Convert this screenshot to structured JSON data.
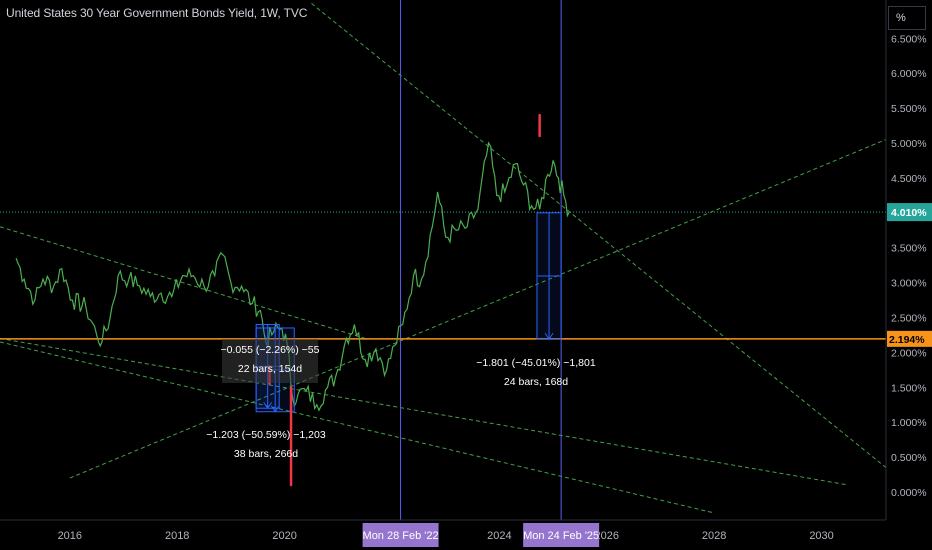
{
  "header": {
    "title": "United States 30 Year Government Bonds Yield, 1W, TVC",
    "unit": "%"
  },
  "colors": {
    "price_line": "#4caf50",
    "trend_lines": "#43a047",
    "horizontal_level": "#f7931a",
    "current_price": "#26a69a",
    "vertical_lines": "#5b5ff0",
    "date_label_bg": "#9575cd",
    "measure_box": "#2962ff",
    "red_marks": "#f23645"
  },
  "chart_data": {
    "type": "line",
    "title": "United States 30 Year Government Bonds Yield, 1W, TVC",
    "xlabel": "",
    "ylabel": "",
    "x_ticks": [
      "2016",
      "2018",
      "2020",
      "2024",
      "2026",
      "2028",
      "2030"
    ],
    "y_ticks": [
      "6.500%",
      "6.000%",
      "5.500%",
      "5.000%",
      "4.500%",
      "4.000%",
      "3.500%",
      "3.000%",
      "2.500%",
      "2.000%",
      "1.500%",
      "1.000%",
      "0.500%",
      "0.000%"
    ],
    "ylim": [
      -0.05,
      6.55
    ],
    "xlim": [
      2014.7,
      2031.2
    ],
    "grid": false,
    "series": [
      {
        "values": [
          [
            2015.0,
            3.35
          ],
          [
            2015.15,
            3.05
          ],
          [
            2015.35,
            2.75
          ],
          [
            2015.5,
            3.05
          ],
          [
            2015.7,
            2.95
          ],
          [
            2015.85,
            3.2
          ],
          [
            2016.05,
            2.75
          ],
          [
            2016.3,
            2.65
          ],
          [
            2016.5,
            2.25
          ],
          [
            2016.6,
            2.15
          ],
          [
            2016.75,
            2.5
          ],
          [
            2016.9,
            3.1
          ],
          [
            2017.1,
            3.05
          ],
          [
            2017.3,
            2.95
          ],
          [
            2017.5,
            2.8
          ],
          [
            2017.7,
            2.85
          ],
          [
            2017.9,
            2.8
          ],
          [
            2018.1,
            3.1
          ],
          [
            2018.3,
            3.1
          ],
          [
            2018.5,
            2.95
          ],
          [
            2018.7,
            3.1
          ],
          [
            2018.85,
            3.4
          ],
          [
            2019.0,
            3.0
          ],
          [
            2019.2,
            2.95
          ],
          [
            2019.4,
            2.7
          ],
          [
            2019.55,
            2.6
          ],
          [
            2019.65,
            2.15
          ],
          [
            2019.8,
            2.3
          ],
          [
            2019.95,
            2.35
          ],
          [
            2020.05,
            2.1
          ],
          [
            2020.15,
            1.35
          ],
          [
            2020.25,
            1.4
          ],
          [
            2020.4,
            1.45
          ],
          [
            2020.6,
            1.25
          ],
          [
            2020.8,
            1.5
          ],
          [
            2020.95,
            1.65
          ],
          [
            2021.15,
            2.2
          ],
          [
            2021.3,
            2.4
          ],
          [
            2021.5,
            1.9
          ],
          [
            2021.7,
            2.05
          ],
          [
            2021.9,
            1.75
          ],
          [
            2022.05,
            2.1
          ],
          [
            2022.2,
            2.4
          ],
          [
            2022.4,
            3.1
          ],
          [
            2022.55,
            3.05
          ],
          [
            2022.75,
            3.8
          ],
          [
            2022.85,
            4.3
          ],
          [
            2023.0,
            3.65
          ],
          [
            2023.2,
            3.75
          ],
          [
            2023.4,
            3.8
          ],
          [
            2023.6,
            4.05
          ],
          [
            2023.8,
            5.0
          ],
          [
            2023.95,
            4.25
          ],
          [
            2024.1,
            4.3
          ],
          [
            2024.3,
            4.7
          ],
          [
            2024.45,
            4.4
          ],
          [
            2024.6,
            4.1
          ],
          [
            2024.75,
            4.05
          ],
          [
            2024.9,
            4.55
          ],
          [
            2025.0,
            4.75
          ],
          [
            2025.1,
            4.5
          ],
          [
            2025.2,
            4.25
          ],
          [
            2025.3,
            4.01
          ]
        ]
      }
    ],
    "current_value": "4.010%",
    "horizontal_level": {
      "value": 2.194,
      "label": "2.194%"
    },
    "trend_lines": [
      {
        "from": [
          2014.7,
          3.8
        ],
        "to": [
          2021.5,
          2.2
        ]
      },
      {
        "from": [
          2014.7,
          2.2
        ],
        "to": [
          2030.5,
          0.1
        ]
      },
      {
        "from": [
          2016.0,
          0.2
        ],
        "to": [
          2031.2,
          5.05
        ]
      },
      {
        "from": [
          2014.7,
          2.15
        ],
        "to": [
          2028.0,
          -0.3
        ]
      },
      {
        "from": [
          2020.5,
          7.0
        ],
        "to": [
          2031.2,
          0.35
        ]
      }
    ],
    "vertical_markers": [
      {
        "x": 2022.16,
        "label": "Mon 28 Feb '22"
      },
      {
        "x": 2025.15,
        "label": "Mon 24 Feb '25"
      }
    ],
    "red_marks": [
      {
        "x": 2019.72,
        "y": [
          1.55,
          1.8
        ]
      },
      {
        "x": 2020.12,
        "y": [
          0.1,
          1.5
        ]
      },
      {
        "x": 2024.75,
        "y": [
          5.1,
          5.4
        ]
      }
    ],
    "measurements": [
      {
        "lines": [
          "−0.055 (−2.26%) −55",
          "22 bars, 154d"
        ],
        "box": {
          "x": [
            2019.47,
            2019.9
          ],
          "y": [
            2.4,
            1.2
          ]
        }
      },
      {
        "lines": [
          "−1.203 (−50.59%) −1,203",
          "38 bars, 266d"
        ],
        "box": {
          "x": [
            2019.47,
            2020.18
          ],
          "y": [
            2.35,
            1.15
          ]
        }
      },
      {
        "lines": [
          "−1.801 (−45.01%) −1,801",
          "24 bars, 168d"
        ],
        "box": {
          "x": [
            2024.7,
            2025.15
          ],
          "y": [
            4.0,
            2.19
          ]
        }
      }
    ]
  }
}
